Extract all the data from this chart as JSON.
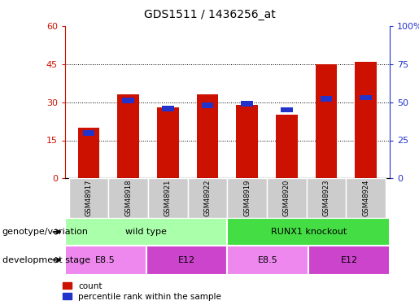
{
  "title": "GDS1511 / 1436256_at",
  "samples": [
    "GSM48917",
    "GSM48918",
    "GSM48921",
    "GSM48922",
    "GSM48919",
    "GSM48920",
    "GSM48923",
    "GSM48924"
  ],
  "counts": [
    20,
    33,
    28,
    33,
    29,
    25,
    45,
    46
  ],
  "percentiles": [
    30,
    51,
    46,
    48,
    49,
    45,
    52,
    53
  ],
  "ylim_left": [
    0,
    60
  ],
  "ylim_right": [
    0,
    100
  ],
  "yticks_left": [
    0,
    15,
    30,
    45,
    60
  ],
  "yticks_right": [
    0,
    25,
    50,
    75,
    100
  ],
  "ytick_labels_right": [
    "0",
    "25",
    "50",
    "75",
    "100%"
  ],
  "bar_color": "#cc1100",
  "percentile_color": "#2233cc",
  "bar_width": 0.55,
  "groups": [
    {
      "label": "wild type",
      "start": 0,
      "end": 4,
      "color": "#aaeea a"
    },
    {
      "label": "RUNX1 knockout",
      "start": 4,
      "end": 8,
      "color": "#33cc33"
    }
  ],
  "stages": [
    {
      "label": "E8.5",
      "start": 0,
      "end": 2,
      "color": "#ee77ee"
    },
    {
      "label": "E12",
      "start": 2,
      "end": 4,
      "color": "#cc33cc"
    },
    {
      "label": "E8.5",
      "start": 4,
      "end": 6,
      "color": "#ee77ee"
    },
    {
      "label": "E12",
      "start": 6,
      "end": 8,
      "color": "#cc33cc"
    }
  ],
  "genotype_label": "genotype/variation",
  "stage_label": "development stage",
  "legend_count": "count",
  "legend_percentile": "percentile rank within the sample",
  "tick_label_color_left": "#cc1100",
  "tick_label_color_right": "#2233cc",
  "sample_box_color": "#cccccc",
  "group_wt_color": "#aaffaa",
  "group_ko_color": "#44dd44",
  "stage_light_color": "#ee88ee",
  "stage_dark_color": "#cc44cc"
}
